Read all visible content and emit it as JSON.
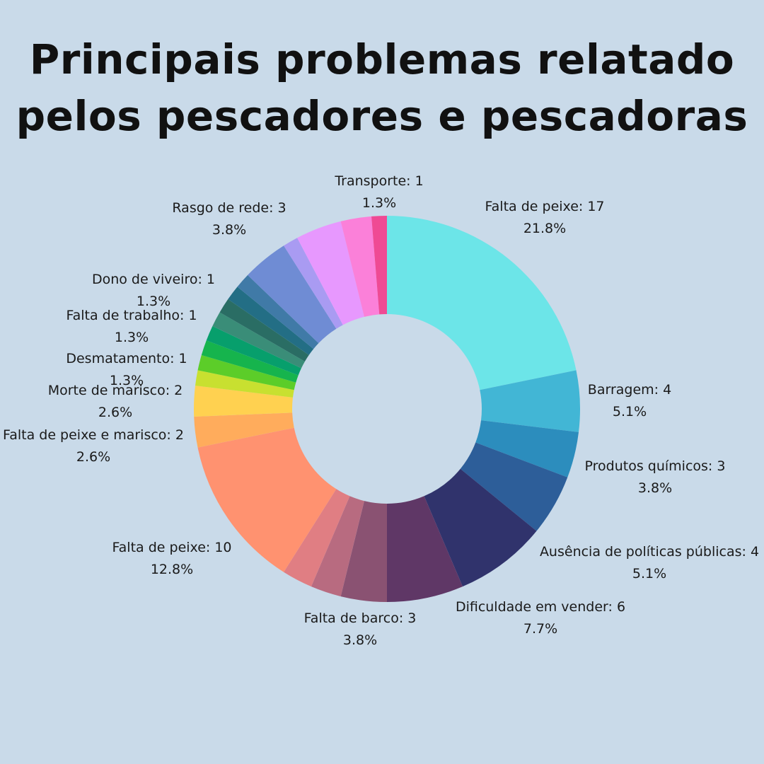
{
  "title": {
    "line1": "Principais problemas relatado",
    "line2": "pelos pescadores e pescadoras"
  },
  "chart_data": {
    "type": "donut",
    "total": 78,
    "slices": [
      {
        "label": "Falta de peixe",
        "value": 17,
        "pct": "21.8%",
        "color": "#6ce5e8",
        "text": "Falta de peixe: 17"
      },
      {
        "label": "Barragem",
        "value": 4,
        "pct": "5.1%",
        "color": "#42b6d5",
        "text": "Barragem: 4"
      },
      {
        "label": "Produtos químicos",
        "value": 3,
        "pct": "3.8%",
        "color": "#2c8dbd",
        "text": "Produtos químicos: 3"
      },
      {
        "label": "Ausência de políticas públicas",
        "value": 4,
        "pct": "5.1%",
        "color": "#2d5e99",
        "text": "Ausência de políticas públicas: 4"
      },
      {
        "label": "Dificuldade em vender",
        "value": 6,
        "pct": "7.7%",
        "color": "#30336c",
        "text": "Dificuldade em vender: 6"
      },
      {
        "label": "",
        "value": 5,
        "pct": "",
        "color": "#5f3766",
        "text": ""
      },
      {
        "label": "Falta de barco",
        "value": 3,
        "pct": "3.8%",
        "color": "#8a5272",
        "text": "Falta de barco: 3"
      },
      {
        "label": "",
        "value": 2,
        "pct": "",
        "color": "#b86b80",
        "text": ""
      },
      {
        "label": "",
        "value": 2,
        "pct": "",
        "color": "#e07e83",
        "text": ""
      },
      {
        "label": "Falta de peixe",
        "value": 10,
        "pct": "12.8%",
        "color": "#ff9270",
        "text": "Falta de peixe: 10"
      },
      {
        "label": "Falta de peixe e marisco",
        "value": 2,
        "pct": "2.6%",
        "color": "#ffac5c",
        "text": "Falta de peixe e marisco: 2"
      },
      {
        "label": "Morte de marisco",
        "value": 2,
        "pct": "2.6%",
        "color": "#ffd150",
        "text": "Morte de marisco: 2"
      },
      {
        "label": "",
        "value": 1,
        "pct": "",
        "color": "#c8e030",
        "text": ""
      },
      {
        "label": "",
        "value": 1,
        "pct": "",
        "color": "#5ccd29",
        "text": ""
      },
      {
        "label": "Desmatamento",
        "value": 1,
        "pct": "1.3%",
        "color": "#16b44d",
        "text": "Desmatamento: 1"
      },
      {
        "label": "",
        "value": 1,
        "pct": "",
        "color": "#079f6c",
        "text": ""
      },
      {
        "label": "Falta de trabalho",
        "value": 1,
        "pct": "1.3%",
        "color": "#3a8d78",
        "text": "Falta de trabalho: 1"
      },
      {
        "label": "",
        "value": 1,
        "pct": "",
        "color": "#2a6d64",
        "text": ""
      },
      {
        "label": "Dono de viveiro",
        "value": 1,
        "pct": "1.3%",
        "color": "#236e85",
        "text": "Dono de viveiro: 1"
      },
      {
        "label": "",
        "value": 1,
        "pct": "",
        "color": "#407aa7",
        "text": ""
      },
      {
        "label": "",
        "value": 3,
        "pct": "",
        "color": "#6f8cd4",
        "text": ""
      },
      {
        "label": "",
        "value": 1,
        "pct": "",
        "color": "#a99bf2",
        "text": ""
      },
      {
        "label": "Rasgo de rede",
        "value": 3,
        "pct": "3.8%",
        "color": "#e798fe",
        "text": "Rasgo de rede: 3"
      },
      {
        "label": "",
        "value": 2,
        "pct": "",
        "color": "#fb80d9",
        "text": ""
      },
      {
        "label": "Transporte",
        "value": 1,
        "pct": "1.3%",
        "color": "#ef4a94",
        "text": "Transporte: 1"
      }
    ]
  }
}
